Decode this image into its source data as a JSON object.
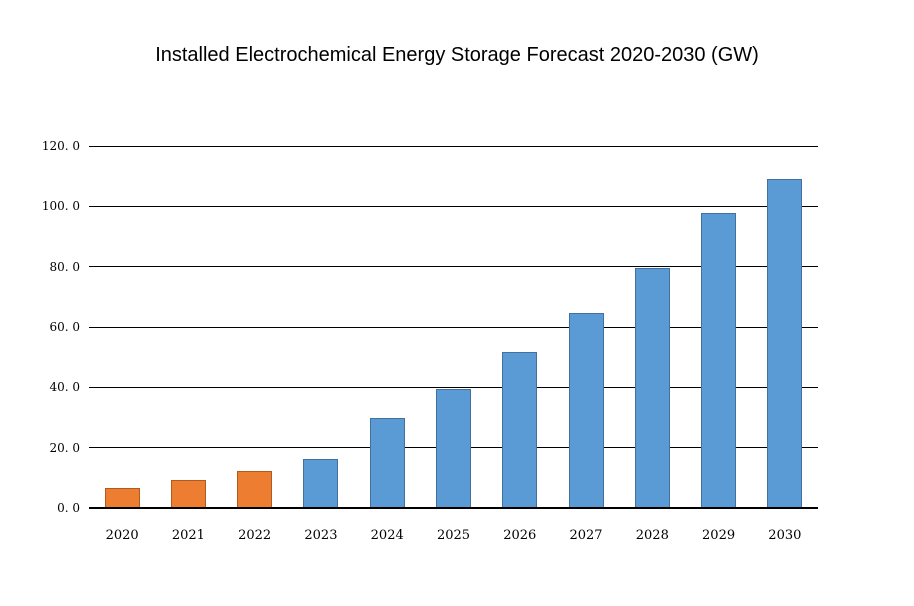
{
  "title": "Installed Electrochemical Energy Storage Forecast 2020-2030 (GW)",
  "chart_data": {
    "type": "bar",
    "title": "Installed Electrochemical Energy Storage Forecast 2020-2030 (GW)",
    "unit": "GW",
    "categories": [
      "2020",
      "2021",
      "2022",
      "2023",
      "2024",
      "2025",
      "2026",
      "2027",
      "2028",
      "2029",
      "2030"
    ],
    "values": [
      6.6,
      9.3,
      12.2,
      16.2,
      29.9,
      39.5,
      51.7,
      64.5,
      79.5,
      97.8,
      109.2
    ],
    "bar_style_keys": [
      "historical",
      "historical",
      "historical",
      "forecast",
      "forecast",
      "forecast",
      "forecast",
      "forecast",
      "forecast",
      "forecast",
      "forecast"
    ],
    "styles": {
      "historical": {
        "fill": "#ED7D31",
        "border": "#AE5A21"
      },
      "forecast": {
        "fill": "#5B9BD5",
        "border": "#41719C"
      }
    },
    "xlabel": "",
    "ylabel": "",
    "ylim": [
      0,
      120
    ],
    "y_tick_values": [
      0,
      20,
      40,
      60,
      80,
      100,
      120
    ],
    "y_tick_labels": [
      "0. 0",
      "20. 0",
      "40. 0",
      "60. 0",
      "80. 0",
      "100. 0",
      "120. 0"
    ],
    "grid": "horizontal-black",
    "gridline_color": "#000000",
    "axis_line_color": "#000000",
    "legend": "none",
    "background_color": "#FFFFFF"
  }
}
